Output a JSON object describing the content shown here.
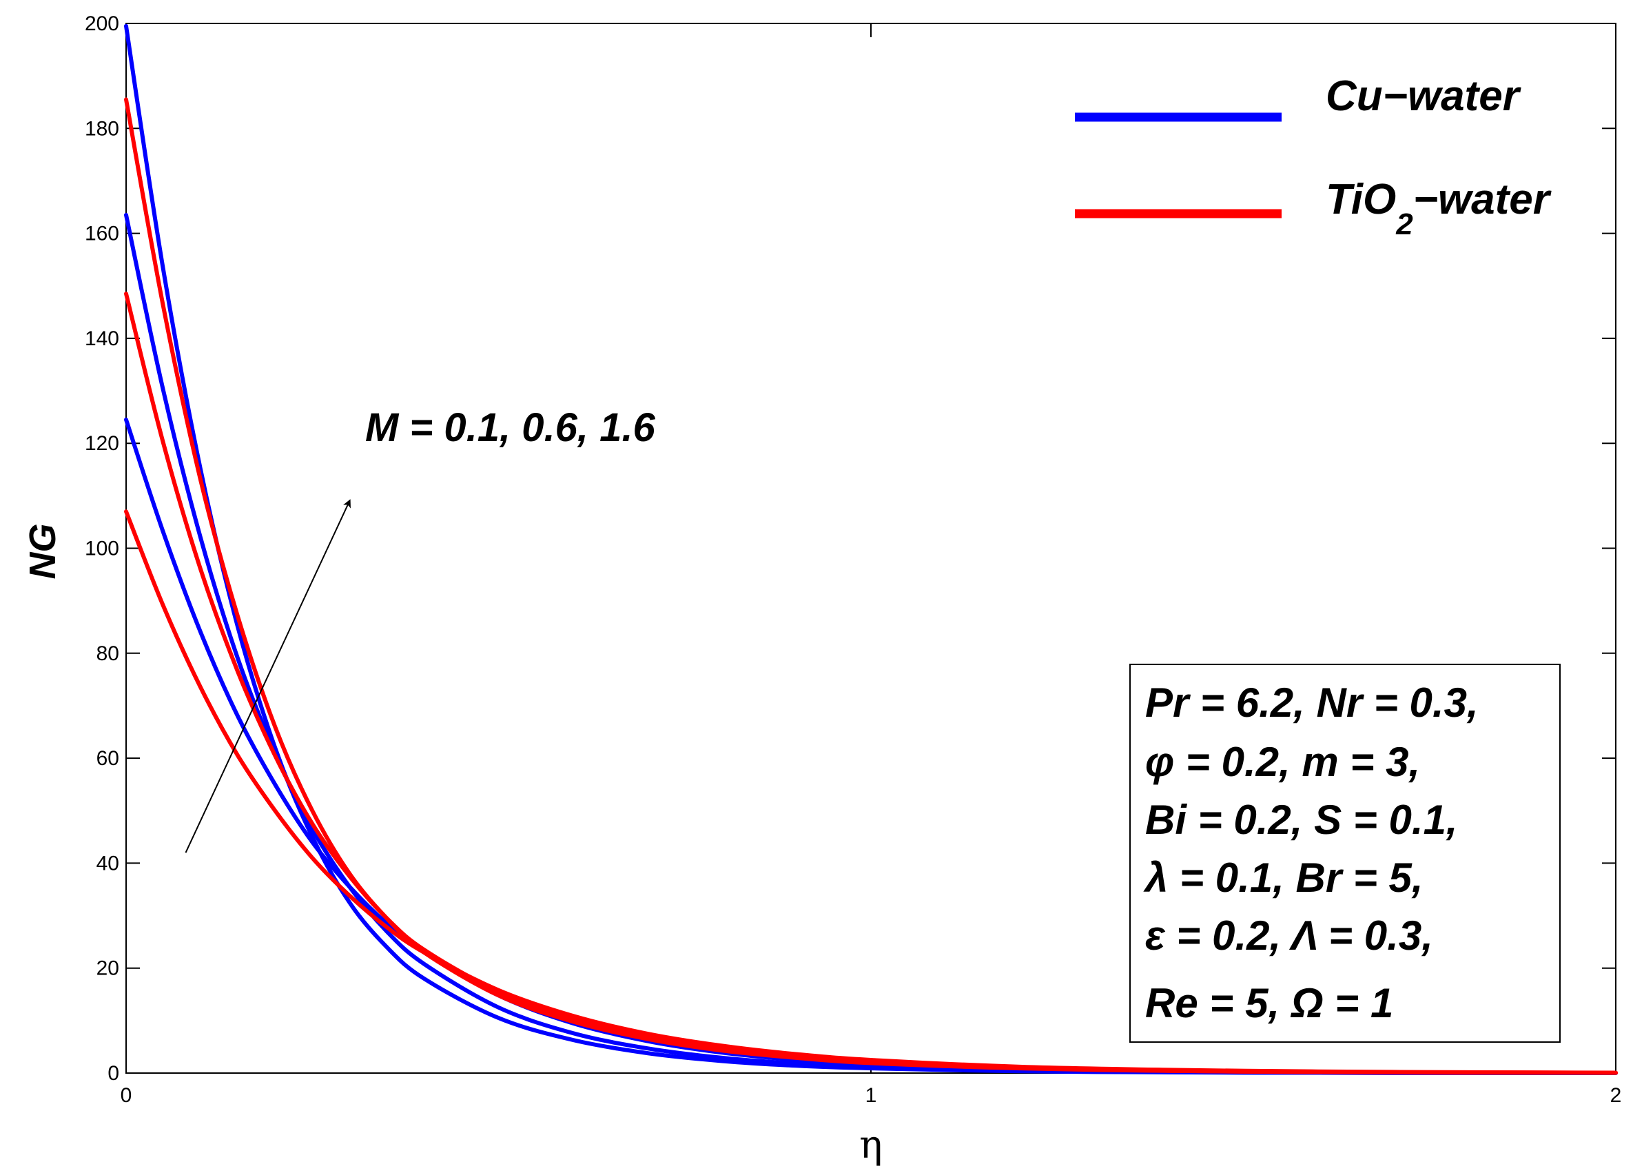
{
  "chart_data": {
    "type": "line",
    "title": "",
    "xlabel": "η",
    "ylabel": "NG",
    "xlim": [
      0,
      2
    ],
    "ylim": [
      0,
      200
    ],
    "xticks": [
      "0",
      "1",
      "2"
    ],
    "yticks": [
      "0",
      "20",
      "40",
      "60",
      "80",
      "100",
      "120",
      "140",
      "160",
      "180",
      "200"
    ],
    "x_values": [
      0,
      0.05,
      0.1,
      0.15,
      0.2,
      0.25,
      0.3,
      0.35,
      0.4,
      0.5,
      0.6,
      0.7,
      0.8,
      0.9,
      1.0,
      1.2,
      1.4,
      1.6,
      1.8,
      2.0
    ],
    "series": [
      {
        "name": "Cu-water (M = 0.1)",
        "group": "Cu-water",
        "M": 0.1,
        "color": "#0000ff",
        "values": [
          124.5,
          103,
          84,
          68,
          55,
          44,
          35.5,
          28.5,
          23,
          14.8,
          9.5,
          6.1,
          3.9,
          2.5,
          1.6,
          0.7,
          0.3,
          0.12,
          0.05,
          0.02
        ]
      },
      {
        "name": "Cu-water (M = 0.6)",
        "group": "Cu-water",
        "M": 0.6,
        "color": "#0000ff",
        "values": [
          163.5,
          130,
          102,
          79,
          61,
          46.5,
          35.5,
          27,
          20.8,
          12.5,
          7.6,
          4.7,
          2.9,
          1.8,
          1.1,
          0.45,
          0.18,
          0.07,
          0.03,
          0.01
        ]
      },
      {
        "name": "Cu-water (M = 1.6)",
        "group": "Cu-water",
        "M": 1.6,
        "color": "#0000ff",
        "values": [
          199.5,
          153,
          115,
          85,
          62,
          45,
          32.5,
          24,
          18,
          10.5,
          6.3,
          3.8,
          2.3,
          1.4,
          0.9,
          0.35,
          0.14,
          0.06,
          0.02,
          0.01
        ]
      },
      {
        "name": "TiO2-water (M = 0.1)",
        "group": "TiO2-water",
        "M": 0.1,
        "color": "#ff0000",
        "values": [
          107,
          89,
          73.5,
          60.5,
          50,
          41,
          33.8,
          27.8,
          23,
          15.8,
          10.9,
          7.5,
          5.2,
          3.6,
          2.5,
          1.2,
          0.6,
          0.3,
          0.15,
          0.07
        ]
      },
      {
        "name": "TiO2-water (M = 0.6)",
        "group": "TiO2-water",
        "M": 0.6,
        "color": "#ff0000",
        "values": [
          148.5,
          120,
          96,
          76.5,
          60.5,
          47.5,
          37.5,
          29.5,
          23.5,
          15.5,
          10.3,
          6.9,
          4.6,
          3.1,
          2.1,
          1.0,
          0.45,
          0.2,
          0.1,
          0.05
        ]
      },
      {
        "name": "TiO2-water (M = 1.6)",
        "group": "TiO2-water",
        "M": 1.6,
        "color": "#ff0000",
        "values": [
          185.5,
          146,
          113,
          87,
          66,
          50,
          38,
          29.5,
          23,
          14.8,
          9.8,
          6.5,
          4.3,
          2.9,
          1.9,
          0.9,
          0.42,
          0.2,
          0.1,
          0.05
        ]
      }
    ],
    "legend": {
      "position": "top-right",
      "entries": [
        {
          "label": "Cu−water",
          "color": "#0000ff"
        },
        {
          "label_main": "TiO",
          "label_sub": "2",
          "label_tail": "−water",
          "color": "#ff0000"
        }
      ]
    },
    "annotations": {
      "arrow_text": "M = 0.1, 0.6, 1.6",
      "arrow": {
        "from": [
          0.08,
          42
        ],
        "to": [
          0.3,
          109
        ]
      },
      "params": [
        "Pr = 6.2, Nr = 0.3,",
        "φ = 0.2, m = 3,",
        "Bi = 0.2, S = 0.1,",
        "λ = 0.1, Br = 5,",
        "ε = 0.2, Λ = 0.3,",
        "Re = 5, Ω = 1"
      ]
    }
  }
}
